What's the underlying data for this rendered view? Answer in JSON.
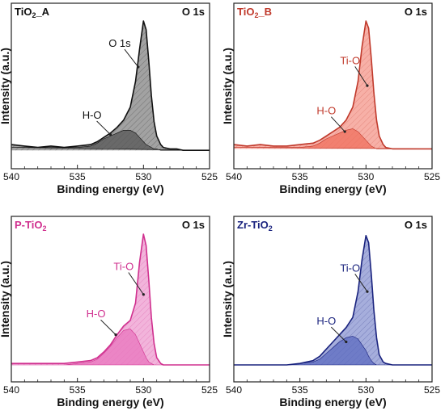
{
  "chart_data": [
    {
      "type": "area",
      "title": "TiO2_A",
      "title_main": "TiO",
      "title_sub": "2",
      "title_suffix": "_A",
      "corner_label": "O 1s",
      "xlabel": "Binding energy (eV)",
      "ylabel": "Intensity (a.u.)",
      "xlim": [
        540,
        525
      ],
      "x_ticks": [
        "540",
        "535",
        "530",
        "525"
      ],
      "ylim": [
        0,
        1
      ],
      "color": "#111111",
      "fill": "#555555",
      "x": [
        540,
        539,
        538,
        537,
        536,
        535,
        534,
        533.5,
        533,
        532.5,
        532,
        531.5,
        531,
        530.6,
        530.3,
        530.0,
        529.8,
        529.6,
        529.4,
        529.2,
        529,
        528.7,
        528.5,
        528,
        527.5,
        527,
        526,
        525
      ],
      "series": [
        {
          "values": [
            0.14,
            0.13,
            0.12,
            0.13,
            0.12,
            0.13,
            0.14,
            0.16,
            0.19,
            0.22,
            0.26,
            0.31,
            0.4,
            0.58,
            0.8,
            1.0,
            0.94,
            0.72,
            0.48,
            0.3,
            0.2,
            0.14,
            0.12,
            0.11,
            0.11,
            0.1,
            0.1,
            0.1
          ]
        },
        {
          "values": [
            0.12,
            0.12,
            0.12,
            0.12,
            0.12,
            0.12,
            0.13,
            0.15,
            0.18,
            0.2,
            0.22,
            0.24,
            0.24,
            0.22,
            0.19,
            0.16,
            0.14,
            0.13,
            0.12,
            0.11,
            0.11,
            0.1,
            0.1,
            0.1,
            0.1,
            0.1,
            0.1,
            0.1
          ]
        }
      ],
      "annotations": [
        {
          "text": "O 1s",
          "x": 531.8,
          "y": 0.82,
          "tx": 530.4,
          "ty": 0.68
        },
        {
          "text": "H-O",
          "x": 533.9,
          "y": 0.32,
          "tx": 532.5,
          "ty": 0.21
        }
      ]
    },
    {
      "type": "area",
      "title": "TiO2_B",
      "title_main": "TiO",
      "title_sub": "2",
      "title_suffix": "_B",
      "corner_label": "O 1s",
      "xlabel": "Binding energy (eV)",
      "ylabel": "Intensity (a.u.)",
      "xlim": [
        540,
        525
      ],
      "x_ticks": [
        "540",
        "535",
        "530",
        "525"
      ],
      "ylim": [
        0,
        1
      ],
      "color": "#c0392b",
      "fill": "#f0705e",
      "x": [
        540,
        539,
        538,
        537,
        536,
        535,
        534,
        533.5,
        533,
        532.5,
        532,
        531.5,
        531,
        530.6,
        530.3,
        530.0,
        529.8,
        529.6,
        529.4,
        529.2,
        529,
        528.7,
        528.5,
        528,
        527.5,
        527,
        526,
        525
      ],
      "series": [
        {
          "values": [
            0.14,
            0.13,
            0.14,
            0.13,
            0.13,
            0.14,
            0.15,
            0.17,
            0.2,
            0.23,
            0.26,
            0.31,
            0.4,
            0.58,
            0.82,
            1.0,
            0.95,
            0.74,
            0.5,
            0.31,
            0.2,
            0.14,
            0.12,
            0.11,
            0.11,
            0.11,
            0.11,
            0.11
          ]
        },
        {
          "values": [
            0.12,
            0.12,
            0.12,
            0.12,
            0.12,
            0.12,
            0.13,
            0.15,
            0.18,
            0.2,
            0.22,
            0.24,
            0.25,
            0.23,
            0.2,
            0.17,
            0.15,
            0.13,
            0.12,
            0.11,
            0.11,
            0.11,
            0.11,
            0.11,
            0.11,
            0.11,
            0.11,
            0.11
          ]
        }
      ],
      "annotations": [
        {
          "text": "Ti-O",
          "x": 531.2,
          "y": 0.7,
          "tx": 529.9,
          "ty": 0.55
        },
        {
          "text": "H-O",
          "x": 533.0,
          "y": 0.35,
          "tx": 531.6,
          "ty": 0.23
        }
      ]
    },
    {
      "type": "area",
      "title": "P-TiO2",
      "title_main": "P-TiO",
      "title_sub": "2",
      "title_suffix": "",
      "corner_label": "O 1s",
      "xlabel": "Binding energy (eV)",
      "ylabel": "Intensity (a.u.)",
      "xlim": [
        540,
        525
      ],
      "x_ticks": [
        "540",
        "535",
        "530",
        "525"
      ],
      "ylim": [
        0,
        1
      ],
      "color": "#d0308f",
      "fill": "#e876bd",
      "x": [
        540,
        539,
        538,
        537,
        536,
        535,
        534,
        533.5,
        533,
        532.5,
        532,
        531.5,
        531,
        530.6,
        530.3,
        530.0,
        529.8,
        529.6,
        529.4,
        529.2,
        529,
        528.7,
        528.5,
        528,
        527.5,
        527,
        526,
        525
      ],
      "series": [
        {
          "values": [
            0.1,
            0.1,
            0.1,
            0.1,
            0.1,
            0.11,
            0.12,
            0.14,
            0.18,
            0.23,
            0.3,
            0.36,
            0.4,
            0.52,
            0.8,
            1.0,
            0.92,
            0.68,
            0.42,
            0.24,
            0.14,
            0.1,
            0.09,
            0.09,
            0.09,
            0.09,
            0.09,
            0.09
          ]
        },
        {
          "values": [
            0.09,
            0.09,
            0.09,
            0.09,
            0.09,
            0.1,
            0.11,
            0.13,
            0.17,
            0.22,
            0.28,
            0.33,
            0.34,
            0.3,
            0.24,
            0.18,
            0.14,
            0.11,
            0.1,
            0.09,
            0.09,
            0.09,
            0.09,
            0.09,
            0.09,
            0.09,
            0.09,
            0.09
          ]
        }
      ],
      "annotations": [
        {
          "text": "Ti-O",
          "x": 531.5,
          "y": 0.75,
          "tx": 530.0,
          "ty": 0.58
        },
        {
          "text": "H-O",
          "x": 533.6,
          "y": 0.42,
          "tx": 532.1,
          "ty": 0.3
        }
      ]
    },
    {
      "type": "area",
      "title": "Zr-TiO2",
      "title_main": "Zr-TiO",
      "title_sub": "2",
      "title_suffix": "",
      "corner_label": "O 1s",
      "xlabel": "Binding energy (eV)",
      "ylabel": "Intensity (a.u.)",
      "xlim": [
        540,
        525
      ],
      "x_ticks": [
        "540",
        "535",
        "530",
        "525"
      ],
      "ylim": [
        0,
        1
      ],
      "color": "#1a237e",
      "fill": "#5c6bc0",
      "x": [
        540,
        539,
        538,
        537,
        536,
        535,
        534,
        533.5,
        533,
        532.5,
        532,
        531.5,
        531,
        530.6,
        530.3,
        530.0,
        529.8,
        529.6,
        529.4,
        529.2,
        529,
        528.7,
        528.5,
        528,
        527.5,
        527,
        526,
        525
      ],
      "series": [
        {
          "values": [
            0.09,
            0.09,
            0.09,
            0.09,
            0.09,
            0.1,
            0.12,
            0.15,
            0.2,
            0.25,
            0.3,
            0.35,
            0.42,
            0.6,
            0.82,
            0.99,
            0.94,
            0.72,
            0.47,
            0.28,
            0.16,
            0.11,
            0.1,
            0.09,
            0.09,
            0.09,
            0.09,
            0.09
          ]
        },
        {
          "values": [
            0.09,
            0.09,
            0.09,
            0.09,
            0.09,
            0.1,
            0.11,
            0.13,
            0.17,
            0.21,
            0.25,
            0.28,
            0.29,
            0.27,
            0.23,
            0.19,
            0.15,
            0.12,
            0.1,
            0.09,
            0.09,
            0.09,
            0.09,
            0.09,
            0.09,
            0.09,
            0.09,
            0.09
          ]
        }
      ],
      "annotations": [
        {
          "text": "Ti-O",
          "x": 531.2,
          "y": 0.74,
          "tx": 529.9,
          "ty": 0.6
        },
        {
          "text": "H-O",
          "x": 533.0,
          "y": 0.37,
          "tx": 531.5,
          "ty": 0.25
        }
      ]
    }
  ]
}
